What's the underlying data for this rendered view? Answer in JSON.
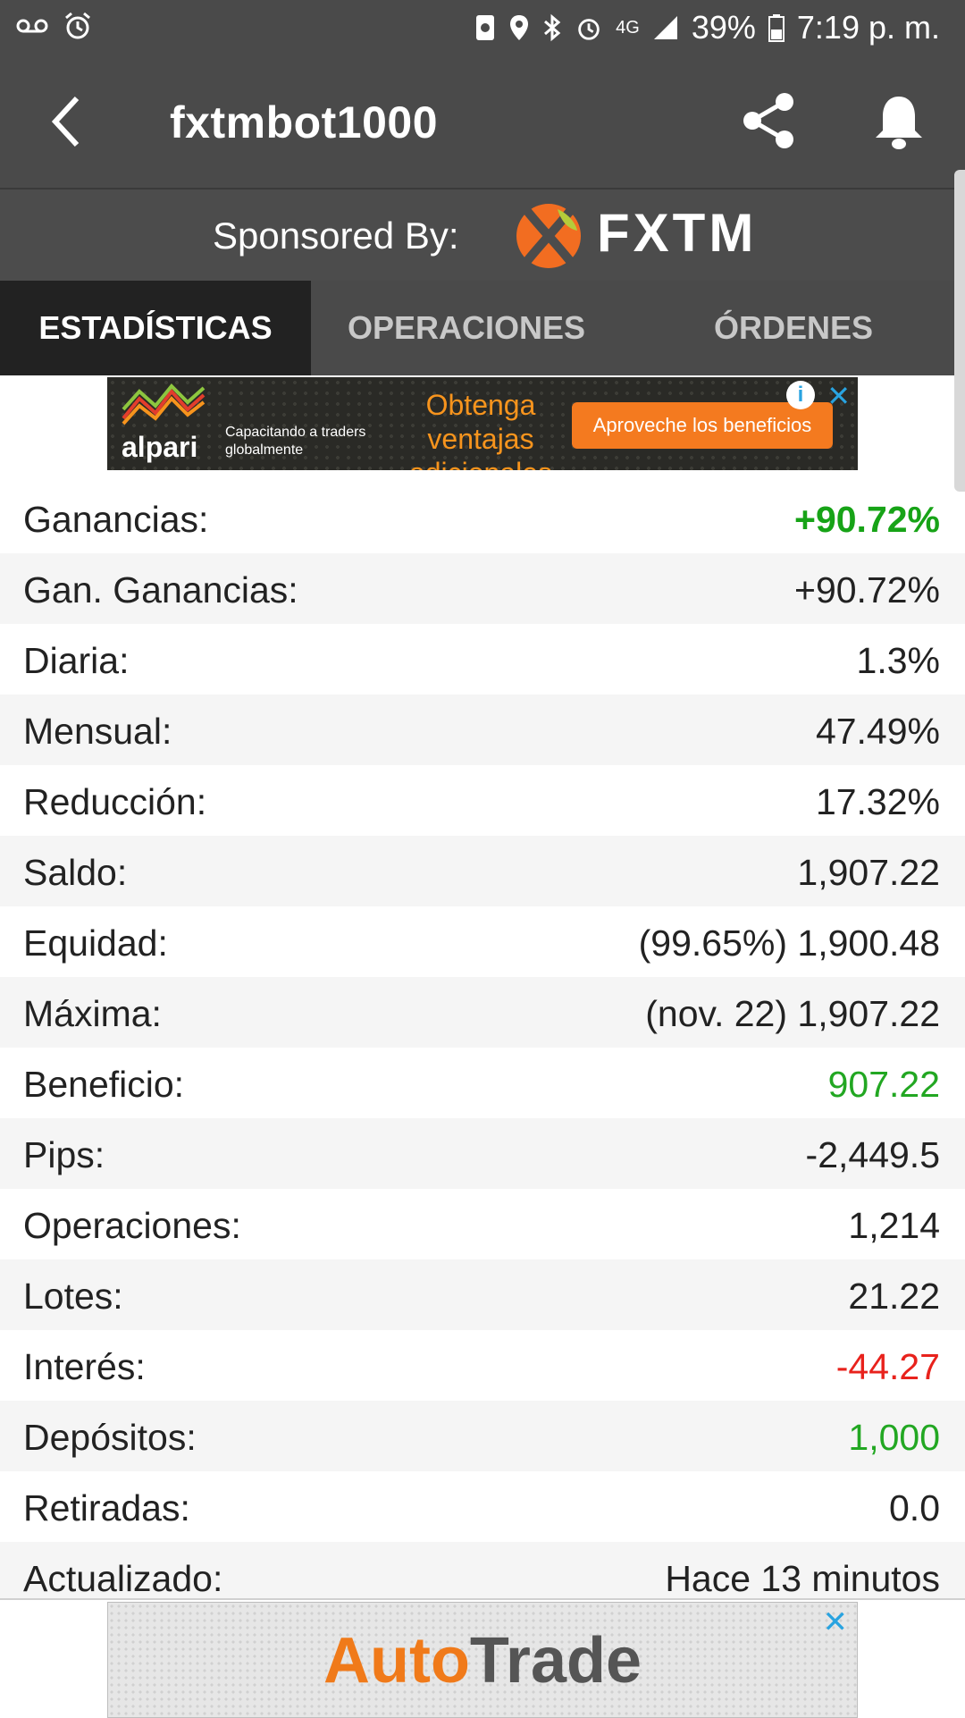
{
  "status_bar": {
    "battery": "39%",
    "time": "7:19 p. m.",
    "network": "4G"
  },
  "app_bar": {
    "title": "fxtmbot1000"
  },
  "sponsor": {
    "label": "Sponsored By:",
    "brand": "FXTM"
  },
  "tabs": [
    {
      "label": "ESTADÍSTICAS",
      "active": true
    },
    {
      "label": "OPERACIONES",
      "active": false
    },
    {
      "label": "ÓRDENES",
      "active": false
    }
  ],
  "ad_top": {
    "brand": "alpari",
    "subtext": "Capacitando a traders globalmente",
    "headline": "Obtenga ventajas adicionales",
    "cta": "Aproveche los beneficios"
  },
  "stats": [
    {
      "label": "Ganancias:",
      "value": "+90.72%"
    },
    {
      "label": "Gan. Ganancias:",
      "value": "+90.72%"
    },
    {
      "label": "Diaria:",
      "value": "1.3%"
    },
    {
      "label": "Mensual:",
      "value": "47.49%"
    },
    {
      "label": "Reducción:",
      "value": "17.32%"
    },
    {
      "label": "Saldo:",
      "value": "1,907.22"
    },
    {
      "label": "Equidad:",
      "value": "(99.65%) 1,900.48"
    },
    {
      "label": "Máxima:",
      "value": "(nov. 22) 1,907.22"
    },
    {
      "label": "Beneficio:",
      "value": "907.22"
    },
    {
      "label": "Pips:",
      "value": "-2,449.5"
    },
    {
      "label": "Operaciones:",
      "value": "1,214"
    },
    {
      "label": "Lotes:",
      "value": "21.22"
    },
    {
      "label": "Interés:",
      "value": "-44.27"
    },
    {
      "label": "Depósitos:",
      "value": "1,000"
    },
    {
      "label": "Retiradas:",
      "value": "0.0"
    },
    {
      "label": "Actualizado:",
      "value": "Hace 13 minutos"
    }
  ],
  "ad_bottom": {
    "brand_part1": "Auto",
    "brand_part2": "Trade"
  },
  "colors": {
    "positive_green": "#17a317",
    "negative_red": "#e8221c",
    "bar_gray": "#4a4a4a",
    "accent_orange": "#f07a1a"
  }
}
